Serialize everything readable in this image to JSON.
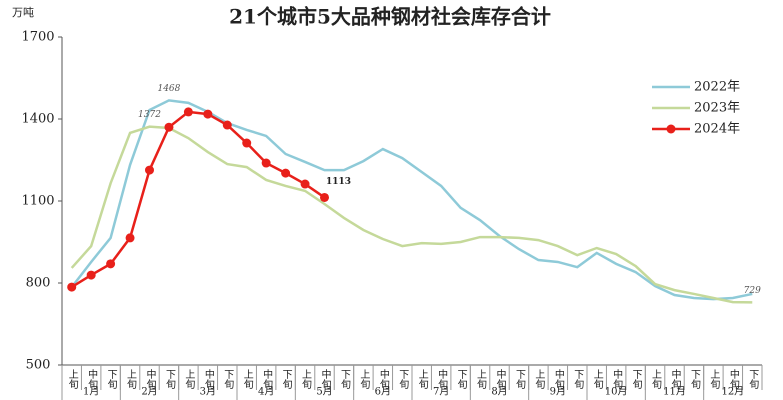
{
  "chart_data": {
    "type": "line",
    "title": "21个城市5大品种钢材社会库存合计",
    "y_unit": "万吨",
    "categories": [
      "上旬",
      "中旬",
      "下旬",
      "上旬",
      "中旬",
      "下旬",
      "上旬",
      "中旬",
      "下旬",
      "上旬",
      "中旬",
      "下旬",
      "上旬",
      "中旬",
      "下旬",
      "上旬",
      "中旬",
      "下旬",
      "上旬",
      "中旬",
      "下旬",
      "上旬",
      "中旬",
      "下旬",
      "上旬",
      "中旬",
      "下旬",
      "上旬",
      "中旬",
      "下旬",
      "上旬",
      "中旬",
      "下旬",
      "上旬",
      "中旬",
      "下旬"
    ],
    "groups": [
      "1月",
      "2月",
      "3月",
      "4月",
      "5月",
      "6月",
      "7月",
      "8月",
      "9月",
      "10月",
      "11月",
      "12月"
    ],
    "ylim": [
      500,
      1700
    ],
    "yticks": [
      500,
      800,
      1100,
      1400,
      1700
    ],
    "legend": "upper right",
    "series": [
      {
        "name": "2022年",
        "color": "#8ecad8",
        "markers": false,
        "values": [
          785,
          877,
          965,
          1232,
          1433,
          1468,
          1459,
          1426,
          1385,
          1360,
          1338,
          1272,
          1243,
          1213,
          1213,
          1246,
          1290,
          1257,
          1206,
          1155,
          1075,
          1030,
          972,
          924,
          884,
          877,
          858,
          910,
          870,
          840,
          789,
          756,
          745,
          741,
          745,
          760
        ],
        "value_labels": [
          null,
          null,
          null,
          null,
          null,
          "1468",
          null,
          null,
          null,
          null,
          null,
          null,
          null,
          null,
          null,
          null,
          null,
          null,
          null,
          null,
          null,
          null,
          null,
          null,
          null,
          null,
          null,
          null,
          null,
          null,
          null,
          null,
          null,
          null,
          null,
          null
        ]
      },
      {
        "name": "2023年",
        "color": "#c5d99a",
        "markers": false,
        "values": [
          855,
          935,
          1165,
          1349,
          1372,
          1367,
          1330,
          1279,
          1235,
          1224,
          1177,
          1155,
          1137,
          1089,
          1038,
          994,
          961,
          935,
          946,
          943,
          950,
          968,
          968,
          965,
          957,
          935,
          902,
          928,
          906,
          862,
          796,
          774,
          760,
          745,
          730,
          729
        ],
        "value_labels": [
          null,
          null,
          null,
          null,
          "1372",
          null,
          null,
          null,
          null,
          null,
          null,
          null,
          null,
          null,
          null,
          null,
          null,
          null,
          null,
          null,
          null,
          null,
          null,
          null,
          null,
          null,
          null,
          null,
          null,
          null,
          null,
          null,
          null,
          null,
          null,
          "729"
        ]
      },
      {
        "name": "2024年",
        "color": "#e8201a",
        "markers": true,
        "values": [
          785,
          829,
          870,
          965,
          1213,
          1370,
          1426,
          1418,
          1378,
          1312,
          1239,
          1202,
          1162,
          1113,
          null,
          null,
          null,
          null,
          null,
          null,
          null,
          null,
          null,
          null,
          null,
          null,
          null,
          null,
          null,
          null,
          null,
          null,
          null,
          null,
          null,
          null
        ],
        "value_labels": [
          null,
          null,
          null,
          null,
          null,
          null,
          null,
          null,
          null,
          null,
          null,
          null,
          null,
          "1113",
          null,
          null,
          null,
          null,
          null,
          null,
          null,
          null,
          null,
          null,
          null,
          null,
          null,
          null,
          null,
          null,
          null,
          null,
          null,
          null,
          null,
          null
        ]
      }
    ]
  }
}
